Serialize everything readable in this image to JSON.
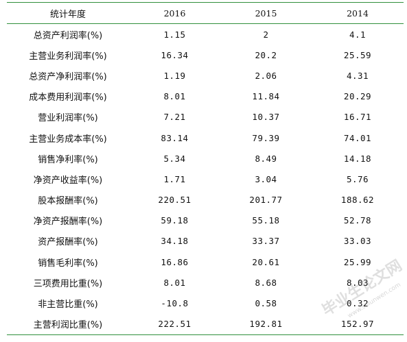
{
  "table": {
    "header": {
      "label": "统计年度",
      "years": [
        "2016",
        "2015",
        "2014"
      ]
    },
    "rows": [
      {
        "name": "总资产利润率(%)",
        "values": [
          "1.15",
          "2",
          "4.1"
        ]
      },
      {
        "name": "主营业务利润率(%)",
        "values": [
          "16.34",
          "20.2",
          "25.59"
        ]
      },
      {
        "name": "总资产净利润率(%)",
        "values": [
          "1.19",
          "2.06",
          "4.31"
        ]
      },
      {
        "name": "成本费用利润率(%)",
        "values": [
          "8.01",
          "11.84",
          "20.29"
        ]
      },
      {
        "name": "营业利润率(%)",
        "values": [
          "7.21",
          "10.37",
          "16.71"
        ]
      },
      {
        "name": "主营业务成本率(%)",
        "values": [
          "83.14",
          "79.39",
          "74.01"
        ]
      },
      {
        "name": "销售净利率(%)",
        "values": [
          "5.34",
          "8.49",
          "14.18"
        ]
      },
      {
        "name": "净资产收益率(%)",
        "values": [
          "1.71",
          "3.04",
          "5.76"
        ]
      },
      {
        "name": "股本报酬率(%)",
        "values": [
          "220.51",
          "201.77",
          "188.62"
        ]
      },
      {
        "name": "净资产报酬率(%)",
        "values": [
          "59.18",
          "55.18",
          "52.78"
        ]
      },
      {
        "name": "资产报酬率(%)",
        "values": [
          "34.18",
          "33.37",
          "33.03"
        ]
      },
      {
        "name": "销售毛利率(%)",
        "values": [
          "16.86",
          "20.61",
          "25.99"
        ]
      },
      {
        "name": "三项费用比重(%)",
        "values": [
          "8.01",
          "8.68",
          "8.03"
        ]
      },
      {
        "name": "非主营比重(%)",
        "values": [
          "-10.8",
          "0.58",
          "0.32"
        ]
      },
      {
        "name": "主营利润比重(%)",
        "values": [
          "222.51",
          "192.81",
          "152.97"
        ]
      }
    ]
  },
  "watermark": {
    "text": "毕业生论文网",
    "url": "www.sblunwen.com"
  },
  "colors": {
    "rule": "#2f8f3a",
    "text": "#111111"
  }
}
